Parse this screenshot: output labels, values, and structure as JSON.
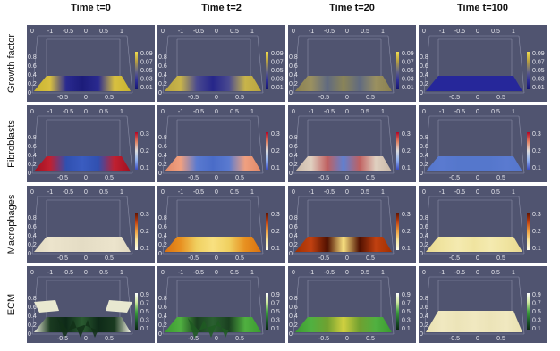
{
  "columns": [
    "Time t=0",
    "Time t=2",
    "Time t=20",
    "Time t=100"
  ],
  "rows": [
    {
      "label": "Growth factor",
      "colorbar": [
        "0.09",
        "0.07",
        "0.05",
        "0.03",
        "0.01"
      ]
    },
    {
      "label": "Fibroblasts",
      "colorbar": [
        "0.3",
        "0.2",
        "0.1"
      ]
    },
    {
      "label": "Macrophages",
      "colorbar": [
        "0.3",
        "0.2",
        "0.1"
      ]
    },
    {
      "label": "ECM",
      "colorbar": [
        "0.9",
        "0.7",
        "0.5",
        "0.3",
        "0.1"
      ]
    }
  ],
  "axes": {
    "top": [
      "0",
      "-1",
      "-0.5",
      "0",
      "0.5",
      "1"
    ],
    "side": [
      "0.8",
      "0.6",
      "0.4",
      "0.2",
      "0"
    ],
    "bottom": [
      "-0.5",
      "0",
      "0.5"
    ]
  }
}
